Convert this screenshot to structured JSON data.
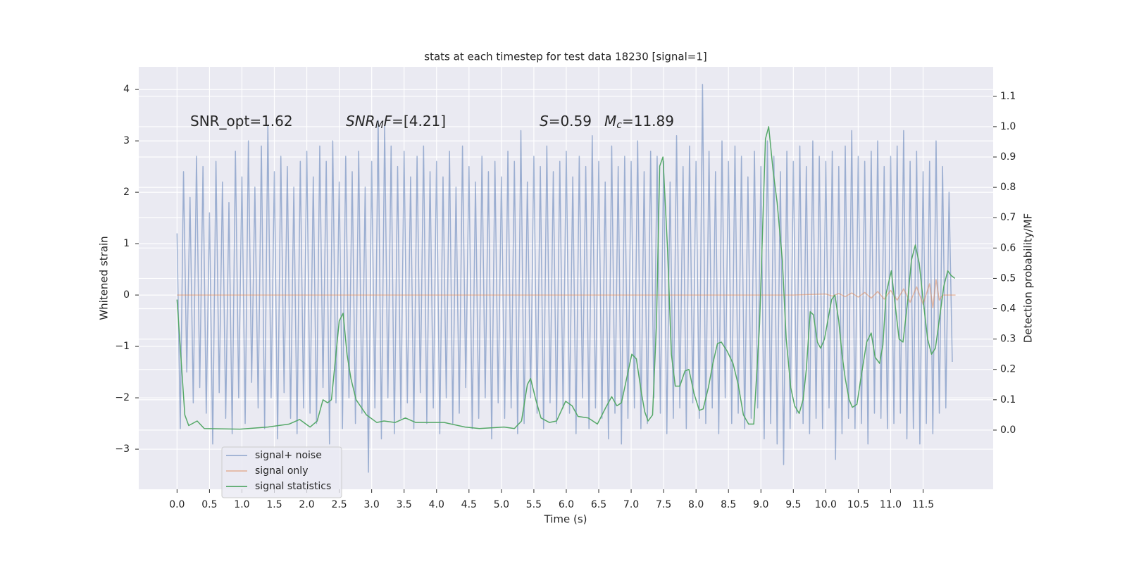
{
  "chart_data": {
    "type": "line",
    "title": "stats at each timestep for test data 18230 [signal=1]",
    "x_label": "Time (s)",
    "y_label": "Whitened strain",
    "y2_label": "Detection probability/MF",
    "grid": true,
    "legend_loc": "lower left",
    "xlim": [
      -0.59,
      12.58
    ],
    "ylim": [
      -3.78,
      4.44
    ],
    "y2lim": [
      -0.195,
      1.197
    ],
    "xticks": [
      {
        "value": 0,
        "label": "0.0"
      },
      0.5,
      {
        "value": 1,
        "label": "1.0"
      },
      1.5,
      {
        "value": 2,
        "label": "2.0"
      },
      2.5,
      {
        "value": 3,
        "label": "3.0"
      },
      3.5,
      {
        "value": 4,
        "label": "4.0"
      },
      4.5,
      {
        "value": 5,
        "label": "5.0"
      },
      5.5,
      {
        "value": 6,
        "label": "6.0"
      },
      6.5,
      {
        "value": 7,
        "label": "7.0"
      },
      7.5,
      {
        "value": 8,
        "label": "8.0"
      },
      8.5,
      {
        "value": 9,
        "label": "9.0"
      },
      9.5,
      {
        "value": 10,
        "label": "10.0"
      },
      10.5,
      {
        "value": 11,
        "label": "11.0"
      },
      11.5
    ],
    "yticks": [
      {
        "value": -3,
        "label": "−3"
      },
      {
        "value": -2,
        "label": "−2"
      },
      {
        "value": -1,
        "label": "−1"
      },
      0,
      1,
      2,
      3,
      4
    ],
    "y2ticks": [
      {
        "value": 0,
        "label": "0.0"
      },
      0.1,
      0.2,
      0.3,
      0.4,
      0.5,
      0.6,
      0.7,
      0.8,
      0.9,
      {
        "value": 1,
        "label": "1.0"
      },
      1.1
    ],
    "annotations": [
      [
        {
          "text": "SNR_opt=1.62"
        }
      ],
      [
        {
          "text": "SNR",
          "italic": true
        },
        {
          "text": "M",
          "italic": true,
          "sub": true
        },
        {
          "text": "F",
          "italic": true
        },
        {
          "text": "=[4.21]"
        }
      ],
      [
        {
          "text": "S",
          "italic": true
        },
        {
          "text": "=0.59"
        }
      ],
      [
        {
          "text": "M",
          "italic": true
        },
        {
          "text": "c",
          "italic": true,
          "sub": true
        },
        {
          "text": "=11.89"
        }
      ]
    ],
    "series": [
      {
        "name": "signal+ noise",
        "color": "#4c72b0",
        "opacity": 0.5,
        "axis": "y",
        "x": [
          0,
          0.05,
          0.1,
          0.15,
          0.2,
          0.25,
          0.3,
          0.35,
          0.4,
          0.45,
          0.5,
          0.55,
          0.6,
          0.65,
          0.7,
          0.75,
          0.8,
          0.85,
          0.9,
          0.95,
          1,
          1.05,
          1.1,
          1.15,
          1.2,
          1.25,
          1.3,
          1.35,
          1.4,
          1.45,
          1.5,
          1.55,
          1.6,
          1.65,
          1.7,
          1.75,
          1.8,
          1.85,
          1.9,
          1.95,
          2,
          2.05,
          2.1,
          2.15,
          2.2,
          2.25,
          2.3,
          2.35,
          2.4,
          2.45,
          2.5,
          2.55,
          2.6,
          2.65,
          2.7,
          2.75,
          2.8,
          2.85,
          2.9,
          2.95,
          3,
          3.05,
          3.1,
          3.15,
          3.2,
          3.25,
          3.3,
          3.35,
          3.4,
          3.45,
          3.5,
          3.55,
          3.6,
          3.65,
          3.7,
          3.75,
          3.8,
          3.85,
          3.9,
          3.95,
          4,
          4.05,
          4.1,
          4.15,
          4.2,
          4.25,
          4.3,
          4.35,
          4.4,
          4.45,
          4.5,
          4.55,
          4.6,
          4.65,
          4.7,
          4.75,
          4.8,
          4.85,
          4.9,
          4.95,
          5,
          5.05,
          5.1,
          5.15,
          5.2,
          5.25,
          5.3,
          5.35,
          5.4,
          5.45,
          5.5,
          5.55,
          5.6,
          5.65,
          5.7,
          5.75,
          5.8,
          5.85,
          5.9,
          5.95,
          6,
          6.05,
          6.1,
          6.15,
          6.2,
          6.25,
          6.3,
          6.35,
          6.4,
          6.45,
          6.5,
          6.55,
          6.6,
          6.65,
          6.7,
          6.75,
          6.8,
          6.85,
          6.9,
          6.95,
          7,
          7.05,
          7.1,
          7.15,
          7.2,
          7.25,
          7.3,
          7.35,
          7.4,
          7.45,
          7.5,
          7.55,
          7.6,
          7.65,
          7.7,
          7.75,
          7.8,
          7.85,
          7.9,
          7.95,
          8,
          8.05,
          8.1,
          8.15,
          8.2,
          8.25,
          8.3,
          8.35,
          8.4,
          8.45,
          8.5,
          8.55,
          8.6,
          8.65,
          8.7,
          8.75,
          8.8,
          8.85,
          8.9,
          8.95,
          9,
          9.05,
          9.1,
          9.15,
          9.2,
          9.25,
          9.3,
          9.35,
          9.4,
          9.45,
          9.5,
          9.55,
          9.6,
          9.65,
          9.7,
          9.75,
          9.8,
          9.85,
          9.9,
          9.95,
          10,
          10.05,
          10.1,
          10.15,
          10.2,
          10.25,
          10.3,
          10.35,
          10.4,
          10.45,
          10.5,
          10.55,
          10.6,
          10.65,
          10.7,
          10.75,
          10.8,
          10.85,
          10.9,
          10.95,
          11,
          11.05,
          11.1,
          11.15,
          11.2,
          11.25,
          11.3,
          11.35,
          11.4,
          11.45,
          11.5,
          11.55,
          11.6,
          11.65,
          11.7,
          11.75,
          11.8,
          11.85,
          11.9,
          11.95
        ],
        "values": [
          1.2,
          -2.6,
          2.4,
          -1.5,
          1.9,
          -2.1,
          2.7,
          -1.8,
          2.5,
          -2.3,
          1.6,
          -2.9,
          2.6,
          -1.9,
          2.2,
          -2.4,
          1.8,
          -2.7,
          2.8,
          -2.0,
          2.3,
          -2.5,
          3.0,
          -1.7,
          2.1,
          -2.2,
          2.9,
          -2.6,
          3.3,
          -2.0,
          2.4,
          -2.8,
          2.7,
          -1.9,
          2.5,
          -2.4,
          2.1,
          -2.7,
          2.6,
          -2.2,
          2.8,
          -2.3,
          2.3,
          -2.5,
          2.9,
          -1.8,
          2.6,
          -2.9,
          3.0,
          -2.1,
          2.2,
          -2.6,
          2.7,
          -2.0,
          2.4,
          -2.5,
          2.8,
          -2.3,
          2.1,
          -3.45,
          2.6,
          -2.2,
          3.4,
          -2.8,
          3.3,
          -2.0,
          2.9,
          -2.7,
          2.5,
          -2.4,
          2.8,
          -2.1,
          2.3,
          -2.6,
          2.7,
          -1.9,
          2.9,
          -2.5,
          2.4,
          -2.2,
          2.6,
          -2.7,
          2.3,
          -2.0,
          2.8,
          -2.5,
          2.1,
          -2.3,
          2.9,
          -1.8,
          2.5,
          -2.6,
          2.2,
          -2.4,
          2.7,
          -2.0,
          2.4,
          -2.8,
          2.6,
          -2.1,
          2.3,
          -2.4,
          2.8,
          -2.2,
          2.6,
          -2.7,
          3.2,
          -2.5,
          2.2,
          -2.0,
          2.7,
          -2.3,
          2.5,
          -2.6,
          2.9,
          -2.1,
          2.4,
          -2.5,
          2.6,
          -2.2,
          2.8,
          -2.3,
          2.3,
          -2.7,
          2.7,
          -2.0,
          2.5,
          -2.6,
          3.1,
          -2.2,
          2.6,
          -2.4,
          2.2,
          -2.8,
          2.9,
          -2.3,
          2.5,
          -2.9,
          2.7,
          -2.4,
          2.6,
          -2.2,
          3.0,
          -2.6,
          2.4,
          -2.5,
          2.8,
          -2.0,
          2.7,
          -2.3,
          2.6,
          -2.7,
          2.2,
          -2.4,
          3.1,
          -2.2,
          2.5,
          -2.6,
          2.9,
          -2.1,
          2.6,
          -2.4,
          4.1,
          -2.5,
          2.8,
          -2.2,
          2.4,
          -2.7,
          3.0,
          -2.0,
          2.6,
          -2.5,
          2.9,
          -2.3,
          2.7,
          -2.6,
          2.3,
          -2.4,
          2.8,
          -2.2,
          2.5,
          -2.8,
          3.0,
          -2.5,
          2.7,
          -2.9,
          2.4,
          -3.3,
          2.8,
          -2.6,
          2.6,
          -2.3,
          2.9,
          -2.5,
          2.5,
          -2.7,
          3.0,
          -2.4,
          2.7,
          -2.6,
          2.6,
          -2.2,
          2.8,
          -3.2,
          2.5,
          -2.7,
          2.9,
          -2.4,
          3.2,
          -2.6,
          2.7,
          -2.5,
          2.6,
          -2.9,
          2.8,
          -2.3,
          3.0,
          -2.4,
          2.5,
          -2.6,
          2.7,
          -2.5,
          2.9,
          -2.3,
          3.2,
          -2.8,
          2.6,
          -2.6,
          2.8,
          -2.9,
          2.4,
          -2.5,
          2.6,
          -2.7,
          3.0,
          -2.3,
          2.5,
          -2.2,
          2.0,
          -1.3
        ]
      },
      {
        "name": "signal only",
        "color": "#dd8452",
        "opacity": 0.5,
        "axis": "y",
        "x": [
          0,
          9.5,
          10.0,
          10.1,
          10.2,
          10.3,
          10.4,
          10.5,
          10.6,
          10.7,
          10.8,
          10.9,
          11.0,
          11.1,
          11.2,
          11.3,
          11.4,
          11.5,
          11.6,
          11.65,
          11.7,
          11.75,
          11.8,
          12.0
        ],
        "values": [
          0,
          0,
          0.02,
          -0.02,
          0.03,
          -0.03,
          0.04,
          -0.04,
          0.05,
          -0.06,
          0.07,
          -0.08,
          0.09,
          -0.1,
          0.12,
          -0.14,
          0.16,
          -0.18,
          0.22,
          -0.25,
          0.3,
          -0.1,
          0,
          0
        ]
      },
      {
        "name": "signal statistics",
        "color": "#55a868",
        "opacity": 1,
        "axis": "y2",
        "x": [
          0,
          0.12,
          0.18,
          0.31,
          0.42,
          0.97,
          1.4,
          1.73,
          1.89,
          2.05,
          2.16,
          2.25,
          2.32,
          2.38,
          2.5,
          2.56,
          2.62,
          2.68,
          2.76,
          2.92,
          3.08,
          3.19,
          3.36,
          3.52,
          3.68,
          4.12,
          4.44,
          4.66,
          5.04,
          5.2,
          5.31,
          5.4,
          5.45,
          5.53,
          5.61,
          5.74,
          5.85,
          5.99,
          6.09,
          6.18,
          6.34,
          6.48,
          6.61,
          6.7,
          6.78,
          6.85,
          6.94,
          7.01,
          7.08,
          7.16,
          7.21,
          7.26,
          7.33,
          7.39,
          7.44,
          7.49,
          7.56,
          7.62,
          7.68,
          7.75,
          7.83,
          7.89,
          7.97,
          8.05,
          8.11,
          8.19,
          8.26,
          8.33,
          8.39,
          8.48,
          8.57,
          8.65,
          8.73,
          8.81,
          8.89,
          8.98,
          9.07,
          9.12,
          9.19,
          9.25,
          9.33,
          9.39,
          9.46,
          9.52,
          9.59,
          9.65,
          9.7,
          9.76,
          9.81,
          9.87,
          9.92,
          9.98,
          10.03,
          10.09,
          10.14,
          10.2,
          10.25,
          10.3,
          10.36,
          10.41,
          10.48,
          10.54,
          10.63,
          10.7,
          10.76,
          10.83,
          10.88,
          10.93,
          11.01,
          11.06,
          11.13,
          11.19,
          11.26,
          11.32,
          11.38,
          11.44,
          11.51,
          11.57,
          11.63,
          11.69,
          11.76,
          11.82,
          11.88,
          11.93,
          11.99
        ],
        "values": [
          0.43,
          0.05,
          0.015,
          0.03,
          0.005,
          0.003,
          0.01,
          0.02,
          0.035,
          0.01,
          0.03,
          0.1,
          0.09,
          0.1,
          0.36,
          0.385,
          0.25,
          0.17,
          0.1,
          0.05,
          0.025,
          0.03,
          0.025,
          0.04,
          0.025,
          0.025,
          0.01,
          0.005,
          0.01,
          0.005,
          0.03,
          0.15,
          0.17,
          0.1,
          0.04,
          0.025,
          0.03,
          0.095,
          0.08,
          0.045,
          0.04,
          0.02,
          0.075,
          0.11,
          0.08,
          0.09,
          0.18,
          0.25,
          0.235,
          0.12,
          0.06,
          0.03,
          0.05,
          0.35,
          0.87,
          0.9,
          0.6,
          0.25,
          0.145,
          0.145,
          0.195,
          0.2,
          0.12,
          0.065,
          0.07,
          0.14,
          0.22,
          0.285,
          0.29,
          0.26,
          0.22,
          0.15,
          0.05,
          0.02,
          0.02,
          0.35,
          0.96,
          1.0,
          0.85,
          0.75,
          0.56,
          0.3,
          0.14,
          0.08,
          0.055,
          0.1,
          0.2,
          0.39,
          0.38,
          0.29,
          0.27,
          0.3,
          0.36,
          0.43,
          0.445,
          0.36,
          0.25,
          0.17,
          0.1,
          0.075,
          0.085,
          0.17,
          0.29,
          0.32,
          0.24,
          0.22,
          0.28,
          0.45,
          0.525,
          0.43,
          0.3,
          0.29,
          0.42,
          0.56,
          0.61,
          0.55,
          0.41,
          0.3,
          0.25,
          0.27,
          0.38,
          0.475,
          0.525,
          0.51,
          0.5
        ]
      }
    ]
  }
}
